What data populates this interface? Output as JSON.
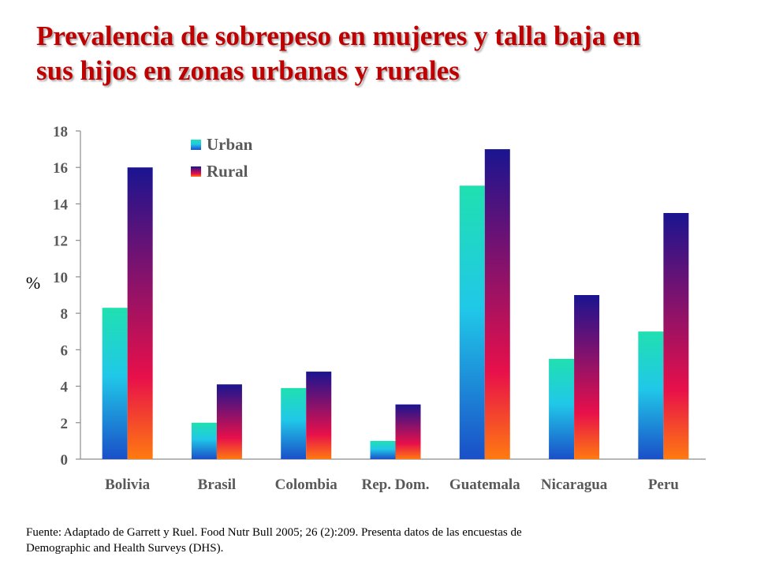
{
  "title_lines": [
    "Prevalencia de sobrepeso en mujeres y talla baja en",
    "sus hijos en zonas urbanas y rurales"
  ],
  "source_lines": [
    "Fuente:  Adaptado de Garrett y Ruel.  Food Nutr Bull 2005; 26 (2):209.  Presenta datos de las encuestas de",
    "Demographic and Health Surveys (DHS)."
  ],
  "colors": {
    "title": "#c00000"
  },
  "chart_data": {
    "type": "bar",
    "ylabel": "%",
    "ylim": [
      0,
      18
    ],
    "yticks": [
      0,
      2,
      4,
      6,
      8,
      10,
      12,
      14,
      16,
      18
    ],
    "grid": false,
    "legend_position": "top-left",
    "categories": [
      "Bolivia",
      "Brasil",
      "Colombia",
      "Rep. Dom.",
      "Guatemala",
      "Nicaragua",
      "Peru"
    ],
    "series": [
      {
        "name": "Urban",
        "values": [
          8.3,
          2.0,
          3.9,
          1.0,
          15.0,
          5.5,
          7.0
        ],
        "gradient": [
          "#20e0b0",
          "#20c8e8",
          "#1a4fc8"
        ]
      },
      {
        "name": "Rural",
        "values": [
          16.0,
          4.1,
          4.8,
          3.0,
          17.0,
          9.0,
          13.5
        ],
        "gradient": [
          "#1a1490",
          "#e8104a",
          "#ff7a10"
        ]
      }
    ]
  }
}
